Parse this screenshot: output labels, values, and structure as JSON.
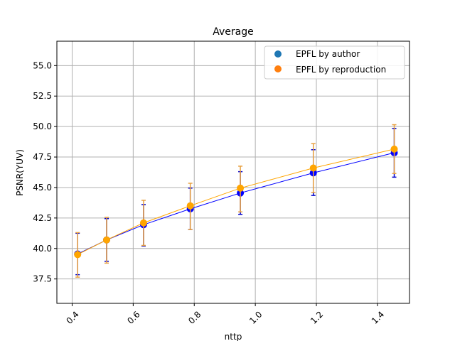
{
  "chart_data": {
    "type": "line",
    "title": "Average",
    "xlabel": "nttp",
    "ylabel": "PSNR(YUV)",
    "xlim": [
      0.35,
      1.505
    ],
    "ylim": [
      35.5,
      57.0
    ],
    "xticks": [
      0.4,
      0.6,
      0.8,
      1.0,
      1.2,
      1.4
    ],
    "xtick_labels": [
      "0.4",
      "0.6",
      "0.8",
      "1.0",
      "1.2",
      "1.4"
    ],
    "yticks": [
      37.5,
      40.0,
      42.5,
      45.0,
      47.5,
      50.0,
      52.5,
      55.0
    ],
    "ytick_labels": [
      "37.5",
      "40.0",
      "42.5",
      "45.0",
      "47.5",
      "50.0",
      "52.5",
      "55.0"
    ],
    "xtick_rotation": 45,
    "grid": true,
    "legend_position": "top-right",
    "series": [
      {
        "name": "EPFL by author",
        "line_color": "#0000ff",
        "marker_color": "#0000ff",
        "legend_color": "#1f77b4",
        "errorbar_color": "#0000cc",
        "x": [
          0.418,
          0.513,
          0.634,
          0.787,
          0.951,
          1.19,
          1.455
        ],
        "y": [
          39.55,
          40.7,
          41.95,
          43.25,
          44.55,
          46.2,
          47.85
        ],
        "yerr_low": [
          1.7,
          1.75,
          1.75,
          1.7,
          1.75,
          1.85,
          2.0
        ],
        "yerr_high": [
          1.7,
          1.75,
          1.65,
          1.7,
          1.75,
          1.9,
          2.0
        ]
      },
      {
        "name": "EPFL by reproduction",
        "line_color": "#ffa500",
        "marker_color": "#ffa500",
        "legend_color": "#ff7f0e",
        "errorbar_color": "#e8a040",
        "x": [
          0.418,
          0.513,
          0.634,
          0.787,
          0.951,
          1.19,
          1.455
        ],
        "y": [
          39.5,
          40.7,
          42.1,
          43.5,
          44.95,
          46.6,
          48.15
        ],
        "yerr_low": [
          1.85,
          1.9,
          1.85,
          1.95,
          1.95,
          2.0,
          2.0
        ],
        "yerr_high": [
          1.8,
          1.85,
          1.85,
          1.85,
          1.8,
          2.0,
          2.0
        ]
      }
    ]
  }
}
